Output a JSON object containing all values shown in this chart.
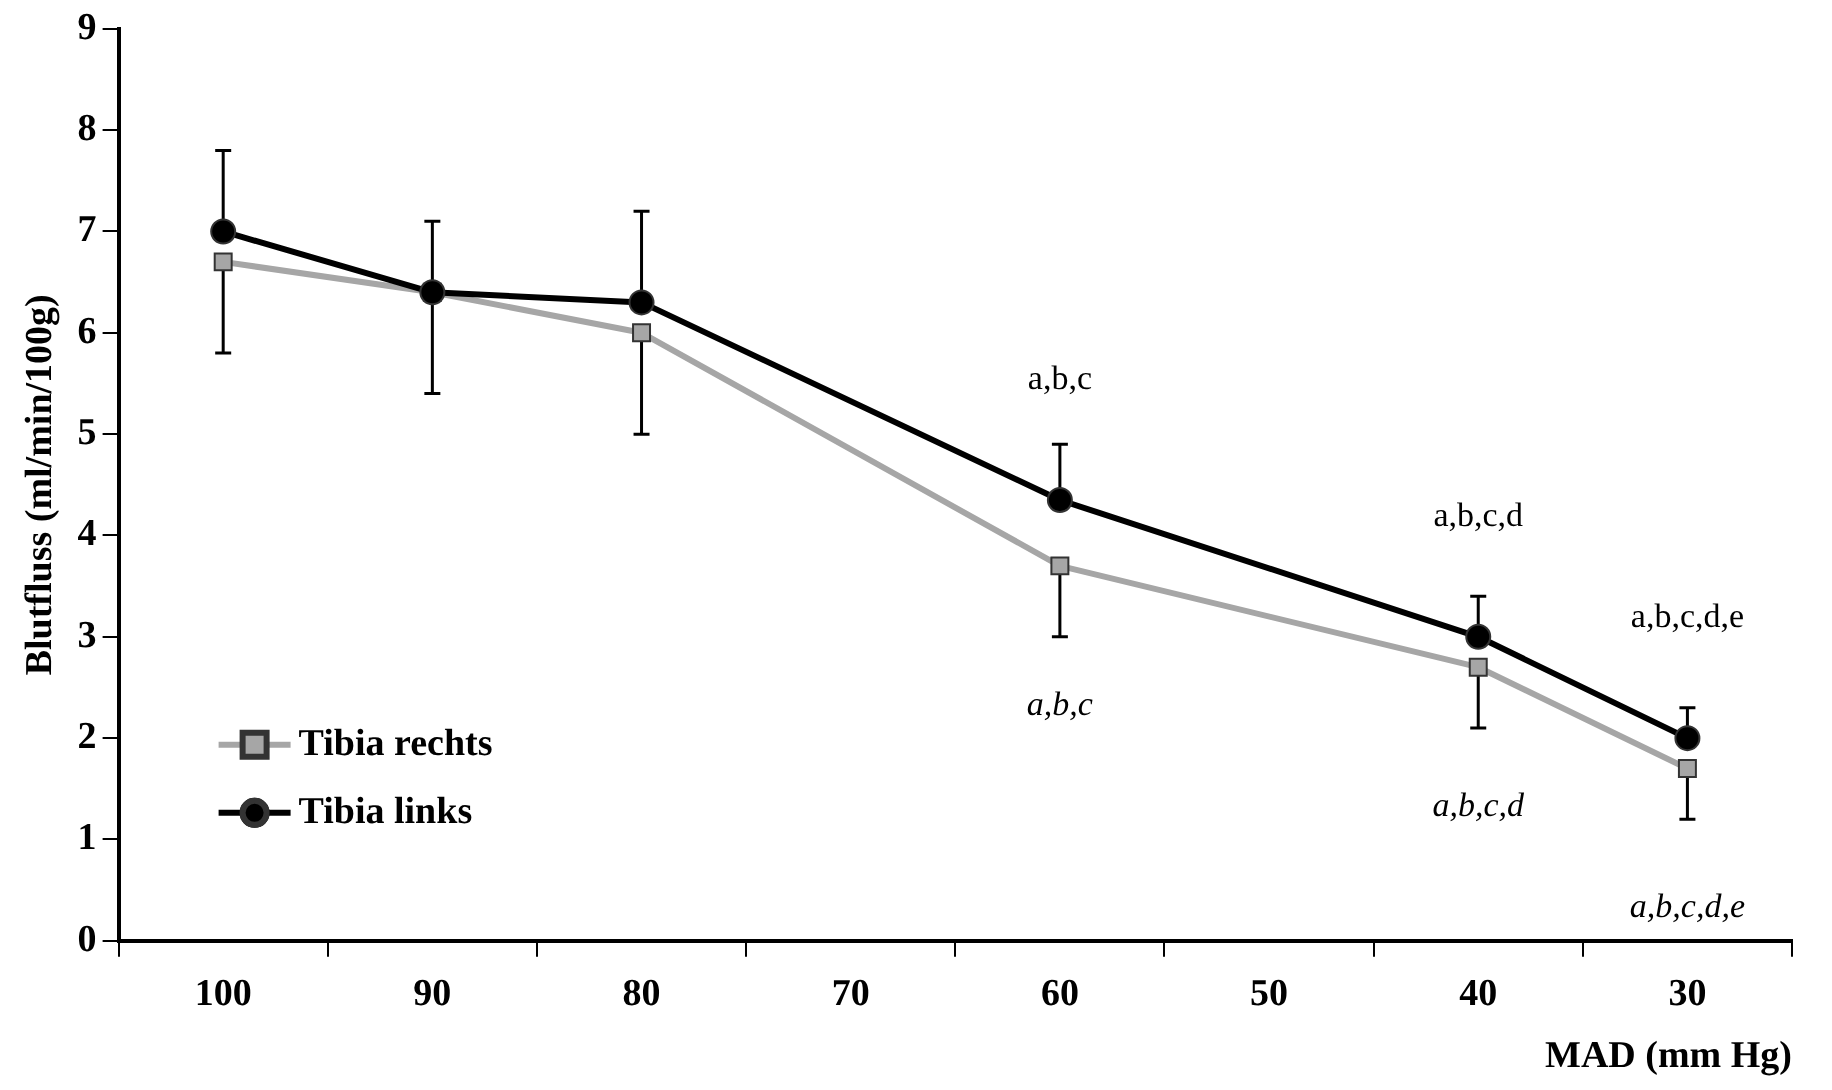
{
  "chart_data": {
    "type": "line",
    "xlabel": "MAD (mm Hg)",
    "ylabel": "Blutfluss (ml/min/100g)",
    "categories": [
      "100",
      "90",
      "80",
      "70",
      "60",
      "50",
      "40",
      "30"
    ],
    "series": [
      {
        "name": "Tibia rechts",
        "color": "#a6a6a6",
        "marker": "square",
        "values": [
          6.7,
          6.4,
          6.0,
          null,
          3.7,
          null,
          2.7,
          1.7
        ],
        "errors": [
          [
            5.8,
            6.7
          ],
          [
            5.4,
            6.4
          ],
          [
            5.0,
            6.0
          ],
          null,
          [
            3.0,
            3.7
          ],
          null,
          [
            2.1,
            2.7
          ],
          [
            1.2,
            1.7
          ]
        ]
      },
      {
        "name": "Tibia links",
        "color": "#000000",
        "marker": "circle",
        "values": [
          7.0,
          6.4,
          6.3,
          null,
          4.35,
          null,
          3.0,
          2.0
        ],
        "errors": [
          [
            7.0,
            7.8
          ],
          [
            6.4,
            7.1
          ],
          [
            6.3,
            7.2
          ],
          null,
          [
            4.35,
            4.9
          ],
          null,
          [
            3.0,
            3.4
          ],
          [
            2.0,
            2.3
          ]
        ]
      }
    ],
    "ylim": [
      0,
      9
    ],
    "yticks": [
      0,
      1,
      2,
      3,
      4,
      5,
      6,
      7,
      8,
      9
    ],
    "grid": false,
    "legend": "bottom left",
    "annotations": [
      "a,b,c",
      "a,b,c,d",
      "a,b,c,d,e",
      "a,b,c",
      "a,b,c,d",
      "a,b,c,d,e"
    ]
  }
}
